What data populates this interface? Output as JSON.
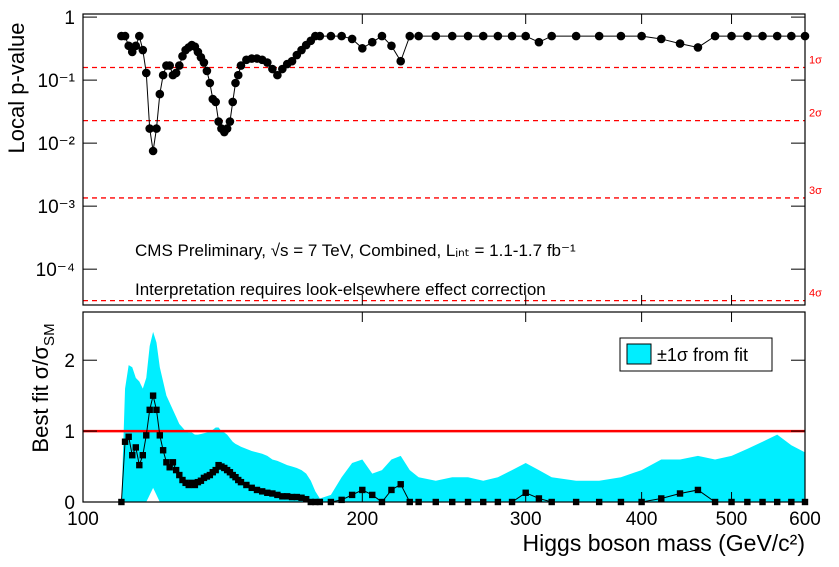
{
  "chart_data": [
    {
      "type": "line",
      "y_label": "Local p-value",
      "xlog": true,
      "ylog": true,
      "xlim": [
        100,
        600
      ],
      "ylim": [
        2.7e-05,
        1.12
      ],
      "yticks": [
        1,
        {
          "value": 0.1,
          "label": "10⁻¹"
        },
        {
          "value": 0.01,
          "label": "10⁻²"
        },
        {
          "value": 0.001,
          "label": "10⁻³"
        },
        {
          "value": 0.0001,
          "label": "10⁻⁴"
        }
      ],
      "color": "#000000",
      "annotations": [
        "CMS Preliminary, √s = 7 TeV, Combined, Lᵢₙₜ = 1.1-1.7 fb⁻¹",
        "Interpretation requires look-elsewhere effect correction"
      ],
      "sigma_color": "#ff0000",
      "sigma_lines": [
        {
          "value": 0.1587,
          "label": "1σ"
        },
        {
          "value": 0.02275,
          "label": "2σ"
        },
        {
          "value": 0.00135,
          "label": "3σ"
        },
        {
          "value": 3.17e-05,
          "label": "4σ"
        }
      ],
      "x": [
        110,
        111,
        112,
        113,
        114,
        115,
        116,
        117,
        118,
        119,
        120,
        121,
        122,
        123,
        124,
        125,
        126,
        127,
        128,
        129,
        130,
        131,
        132,
        133,
        134,
        135,
        136,
        137,
        138,
        139,
        140,
        141,
        142,
        143,
        144,
        145,
        146,
        147,
        148,
        150,
        152,
        154,
        156,
        158,
        160,
        162,
        164,
        166,
        168,
        170,
        172,
        174,
        176,
        178,
        180,
        185,
        190,
        195,
        200,
        205,
        210,
        215,
        220,
        225,
        230,
        240,
        250,
        260,
        270,
        280,
        290,
        300,
        310,
        320,
        340,
        360,
        380,
        400,
        420,
        440,
        460,
        480,
        500,
        520,
        540,
        560,
        580,
        600
      ],
      "values": [
        0.5,
        0.5,
        0.35,
        0.28,
        0.35,
        0.5,
        0.3,
        0.13,
        0.017,
        0.0075,
        0.017,
        0.06,
        0.12,
        0.17,
        0.17,
        0.12,
        0.13,
        0.17,
        0.24,
        0.3,
        0.33,
        0.36,
        0.34,
        0.28,
        0.23,
        0.19,
        0.14,
        0.09,
        0.05,
        0.045,
        0.022,
        0.017,
        0.015,
        0.017,
        0.022,
        0.045,
        0.09,
        0.12,
        0.17,
        0.21,
        0.22,
        0.22,
        0.21,
        0.19,
        0.15,
        0.12,
        0.15,
        0.18,
        0.2,
        0.25,
        0.3,
        0.36,
        0.42,
        0.5,
        0.5,
        0.5,
        0.5,
        0.45,
        0.32,
        0.4,
        0.5,
        0.35,
        0.2,
        0.5,
        0.5,
        0.5,
        0.5,
        0.5,
        0.5,
        0.5,
        0.5,
        0.5,
        0.4,
        0.5,
        0.5,
        0.5,
        0.5,
        0.5,
        0.45,
        0.38,
        0.33,
        0.5,
        0.5,
        0.5,
        0.5,
        0.5,
        0.5,
        0.5
      ]
    },
    {
      "type": "line",
      "y_label": "Best fit σ/σ",
      "y_label_sub": "SM",
      "x_label": "Higgs boson mass (GeV/c²)",
      "xlog": true,
      "xlim": [
        100,
        600
      ],
      "ylim": [
        0,
        2.68
      ],
      "xticks": [
        100,
        200,
        300,
        400,
        500,
        600
      ],
      "yticks": [
        0,
        1,
        2
      ],
      "color": "#000000",
      "reference_line": {
        "value": 1,
        "color": "#ff0000"
      },
      "x": [
        110,
        111,
        112,
        113,
        114,
        115,
        116,
        117,
        118,
        119,
        120,
        121,
        122,
        123,
        124,
        125,
        126,
        127,
        128,
        129,
        130,
        131,
        132,
        133,
        134,
        135,
        136,
        137,
        138,
        139,
        140,
        141,
        142,
        143,
        144,
        145,
        146,
        147,
        148,
        150,
        152,
        154,
        156,
        158,
        160,
        162,
        164,
        166,
        168,
        170,
        172,
        174,
        176,
        178,
        180,
        185,
        190,
        195,
        200,
        205,
        210,
        215,
        220,
        225,
        230,
        240,
        250,
        260,
        270,
        280,
        290,
        300,
        310,
        320,
        340,
        360,
        380,
        400,
        420,
        440,
        460,
        480,
        500,
        520,
        540,
        560,
        580,
        600
      ],
      "values": [
        0,
        0.85,
        0.92,
        0.66,
        0.77,
        0.52,
        0.66,
        0.94,
        1.3,
        1.5,
        1.3,
        0.94,
        0.73,
        0.56,
        0.49,
        0.56,
        0.45,
        0.38,
        0.31,
        0.27,
        0.24,
        0.27,
        0.24,
        0.28,
        0.3,
        0.34,
        0.36,
        0.38,
        0.42,
        0.45,
        0.52,
        0.5,
        0.48,
        0.45,
        0.42,
        0.38,
        0.35,
        0.31,
        0.28,
        0.24,
        0.2,
        0.17,
        0.15,
        0.13,
        0.12,
        0.1,
        0.08,
        0.08,
        0.07,
        0.07,
        0.06,
        0.04,
        0,
        0,
        0,
        0,
        0.03,
        0.1,
        0.17,
        0.1,
        0,
        0.17,
        0.25,
        0,
        0,
        0,
        0,
        0,
        0,
        0,
        0,
        0.13,
        0.05,
        0,
        0,
        0,
        0,
        0,
        0.05,
        0.12,
        0.17,
        0,
        0,
        0,
        0,
        0,
        0,
        0
      ],
      "band": {
        "name": "±1σ from fit",
        "color": "#00eeff",
        "low": [
          0,
          0,
          0,
          0,
          0,
          0,
          0,
          0,
          0.1,
          0.2,
          0.1,
          0,
          0,
          0,
          0,
          0,
          0,
          0,
          0,
          0,
          0,
          0,
          0,
          0,
          0,
          0,
          0,
          0,
          0,
          0,
          0,
          0,
          0,
          0,
          0,
          0,
          0,
          0,
          0,
          0,
          0,
          0,
          0,
          0,
          0,
          0,
          0,
          0,
          0,
          0,
          0,
          0,
          0,
          0,
          0,
          0,
          0,
          0,
          0,
          0,
          0,
          0,
          0,
          0,
          0,
          0,
          0,
          0,
          0,
          0,
          0,
          0,
          0,
          0,
          0,
          0,
          0,
          0,
          0,
          0,
          0,
          0,
          0,
          0,
          0,
          0,
          0,
          0
        ],
        "high": [
          0,
          1.6,
          1.93,
          1.9,
          1.75,
          1.7,
          1.6,
          1.75,
          2.2,
          2.4,
          2.25,
          1.9,
          1.7,
          1.5,
          1.4,
          1.3,
          1.2,
          1.1,
          1.05,
          1.0,
          0.98,
          0.98,
          0.95,
          0.95,
          0.96,
          0.97,
          0.98,
          1.0,
          1.02,
          1.05,
          1.05,
          1.0,
          0.98,
          0.95,
          0.9,
          0.85,
          0.82,
          0.8,
          0.78,
          0.75,
          0.72,
          0.7,
          0.68,
          0.65,
          0.6,
          0.58,
          0.55,
          0.52,
          0.5,
          0.48,
          0.45,
          0.4,
          0.3,
          0.15,
          0.05,
          0.1,
          0.35,
          0.55,
          0.6,
          0.4,
          0.45,
          0.6,
          0.65,
          0.45,
          0.35,
          0.3,
          0.35,
          0.35,
          0.3,
          0.35,
          0.45,
          0.55,
          0.45,
          0.35,
          0.3,
          0.3,
          0.35,
          0.45,
          0.6,
          0.6,
          0.65,
          0.6,
          0.65,
          0.75,
          0.85,
          0.95,
          0.8,
          0.7
        ]
      }
    }
  ]
}
